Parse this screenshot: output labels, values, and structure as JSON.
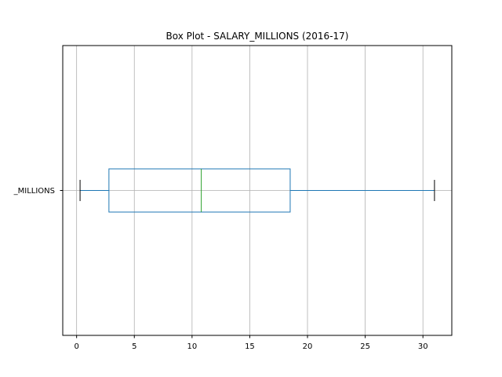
{
  "chart_data": {
    "type": "box",
    "orientation": "horizontal",
    "title": "Box Plot - SALARY_MILLIONS (2016-17)",
    "category_label": "SALARY_MILLIONS",
    "category_label_visible": "_MILLIONS",
    "xlim": [
      -1.2,
      32.5
    ],
    "xticks": [
      0,
      5,
      10,
      15,
      20,
      25,
      30
    ],
    "grid": true,
    "stats": {
      "whisker_low": 0.3,
      "q1": 2.8,
      "median": 10.8,
      "q3": 18.5,
      "whisker_high": 31.0
    },
    "colors": {
      "box": "#1f77b4",
      "median": "#2ca02c",
      "caps": "#000000",
      "grid": "#b0b0b0"
    }
  }
}
